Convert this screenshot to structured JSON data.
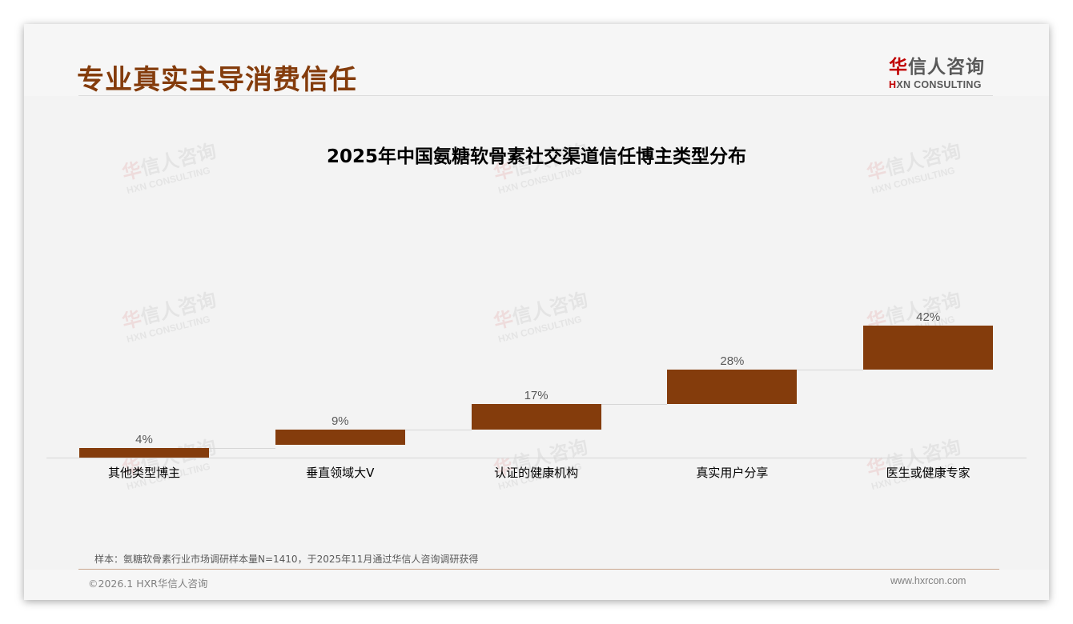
{
  "header": {
    "title": "专业真实主导消费信任",
    "logo": {
      "cn_accent": "华",
      "cn_rest": "信人咨询",
      "en_accent": "H",
      "en_rest": "XN CONSULTING"
    }
  },
  "watermark": {
    "cn_accent": "华",
    "cn_rest": "信人咨询",
    "en": "HXN CONSULTING"
  },
  "colors": {
    "bar": "#843c0c",
    "title": "#843c0c",
    "logo_accent": "#c00000",
    "background": "#f3f3f3"
  },
  "chart_data": {
    "type": "bar",
    "subtype": "waterfall",
    "title": "2025年中国氨糖软骨素社交渠道信任博主类型分布",
    "categories": [
      "其他类型博主",
      "垂直领域大V",
      "认证的健康机构",
      "真实用户分享",
      "医生或健康专家"
    ],
    "values": [
      4,
      9,
      17,
      28,
      42
    ],
    "value_labels": [
      "4%",
      "9%",
      "17%",
      "28%",
      "42%"
    ],
    "unit": "%",
    "xlabel": "",
    "ylabel": "",
    "ylim": [
      0,
      100
    ],
    "grid": false,
    "legend": "none",
    "connector_lines": true
  },
  "footer": {
    "note": "样本：氨糖软骨素行业市场调研样本量N=1410，于2025年11月通过华信人咨询调研获得",
    "copyright": "©2026.1 HXR华信人咨询",
    "website": "www.hxrcon.com"
  }
}
